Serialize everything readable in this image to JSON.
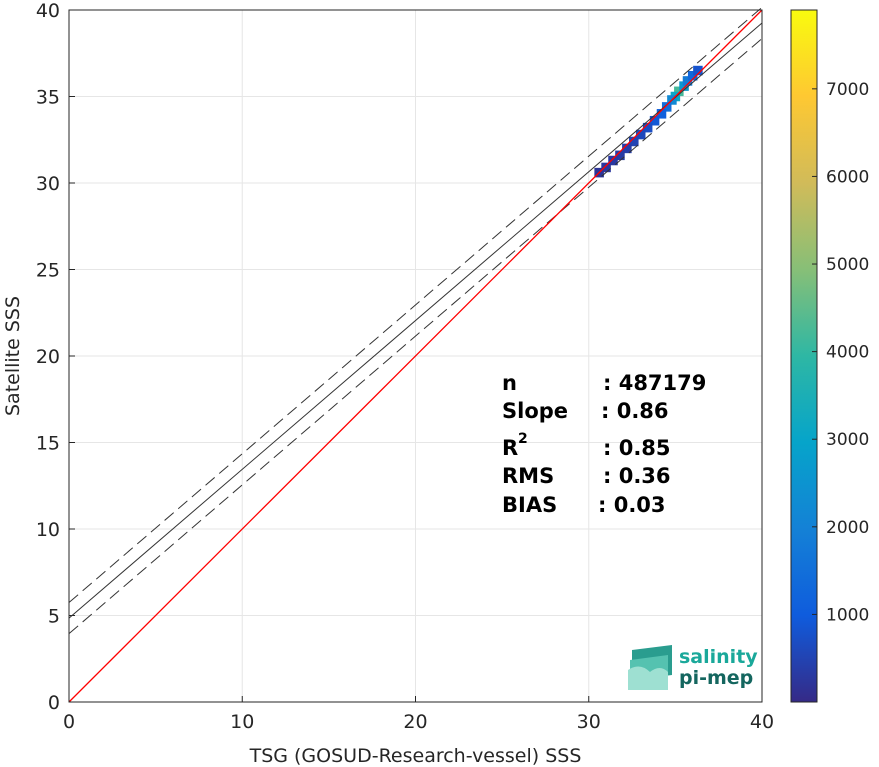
{
  "chart_data": {
    "type": "heatmap",
    "xlabel": "TSG (GOSUD-Research-vessel) SSS",
    "ylabel": "Satellite SSS",
    "xlim": [
      0,
      40
    ],
    "ylim": [
      0,
      40
    ],
    "xticks": [
      "0",
      "10",
      "20",
      "30",
      "40"
    ],
    "yticks": [
      "0",
      "5",
      "10",
      "15",
      "20",
      "25",
      "30",
      "35",
      "40"
    ],
    "grid": true,
    "identity_line": {
      "color": "#ff0000",
      "x": [
        0,
        40
      ],
      "y": [
        0,
        40
      ]
    },
    "fit_line": {
      "slope": 0.86,
      "intercept": 4.85,
      "color": "#333333"
    },
    "fit_band": {
      "offset": 0.9,
      "style": "dashed",
      "color": "#333333"
    },
    "density_cells": [
      {
        "x": 35.2,
        "y": 35.3,
        "count": 4200
      },
      {
        "x": 35.0,
        "y": 35.0,
        "count": 3100
      },
      {
        "x": 35.5,
        "y": 35.6,
        "count": 2600
      },
      {
        "x": 34.8,
        "y": 34.8,
        "count": 2200
      },
      {
        "x": 35.7,
        "y": 35.9,
        "count": 1800
      },
      {
        "x": 34.5,
        "y": 34.4,
        "count": 1500
      },
      {
        "x": 36.0,
        "y": 36.2,
        "count": 1300
      },
      {
        "x": 34.2,
        "y": 34.0,
        "count": 1100
      },
      {
        "x": 33.8,
        "y": 33.6,
        "count": 900
      },
      {
        "x": 36.3,
        "y": 36.5,
        "count": 800
      },
      {
        "x": 33.4,
        "y": 33.2,
        "count": 700
      },
      {
        "x": 33.0,
        "y": 32.8,
        "count": 600
      },
      {
        "x": 32.6,
        "y": 32.4,
        "count": 500
      },
      {
        "x": 32.2,
        "y": 32.0,
        "count": 400
      },
      {
        "x": 31.8,
        "y": 31.6,
        "count": 350
      },
      {
        "x": 31.4,
        "y": 31.3,
        "count": 300
      },
      {
        "x": 31.0,
        "y": 30.9,
        "count": 250
      },
      {
        "x": 30.6,
        "y": 30.6,
        "count": 200
      }
    ],
    "colorbar": {
      "ticks": [
        "1000",
        "2000",
        "3000",
        "4000",
        "5000",
        "6000",
        "7000"
      ],
      "range": [
        0,
        7900
      ],
      "colormap": [
        "#352a87",
        "#0f5cdd",
        "#1481d6",
        "#06a4ca",
        "#2eb7a4",
        "#87bf77",
        "#d1bb59",
        "#fec832",
        "#f9fb0e"
      ]
    },
    "stats": [
      {
        "label": "n",
        "value": ": 487179"
      },
      {
        "label": "Slope",
        "value": ": 0.86"
      },
      {
        "label": "R",
        "sup": "2",
        "value": ": 0.85"
      },
      {
        "label": "RMS",
        "value": ": 0.36"
      },
      {
        "label": "BIAS",
        "value": ": 0.03"
      }
    ]
  },
  "logo": {
    "line1": "salinity",
    "line2": "pi-mep"
  }
}
